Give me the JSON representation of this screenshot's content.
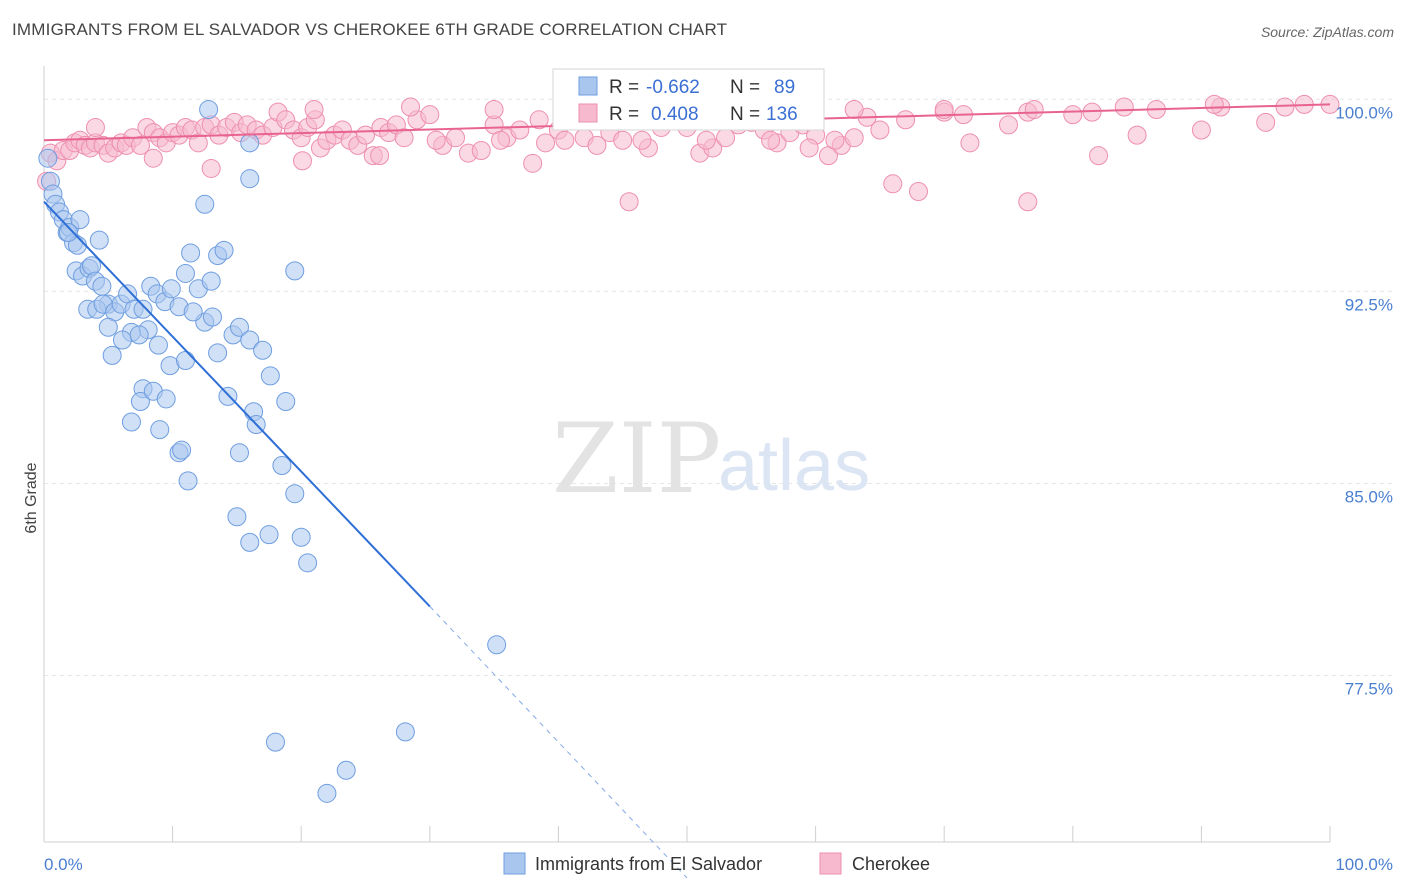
{
  "title": "IMMIGRANTS FROM EL SALVADOR VS CHEROKEE 6TH GRADE CORRELATION CHART",
  "source": "Source: ZipAtlas.com",
  "watermark": {
    "zip": "ZIP",
    "atlas": "atlas"
  },
  "colors": {
    "blue_fill": "#a9c6ee",
    "blue_stroke": "#6f9ee0",
    "blue_line": "#2f6fd6",
    "pink_fill": "#f6b9cd",
    "pink_stroke": "#ee8fb0",
    "pink_line": "#e8648f",
    "tick_text": "#4a7fd0"
  },
  "legend_box": {
    "rows": [
      {
        "r_label": "R =",
        "r_value": "-0.662",
        "n_label": "N =",
        "n_value": "89"
      },
      {
        "r_label": "R =",
        "r_value": "0.408",
        "n_label": "N =",
        "n_value": "136"
      }
    ]
  },
  "chart_data": {
    "type": "scatter",
    "xlabel": "",
    "ylabel": "6th Grade",
    "xlim": [
      0,
      100
    ],
    "ylim": [
      71.0,
      101.3
    ],
    "x_tick_labels": [
      "0.0%",
      "100.0%"
    ],
    "y_ticks": [
      100.0,
      92.5,
      85.0,
      77.5
    ],
    "y_tick_labels": [
      "100.0%",
      "92.5%",
      "85.0%",
      "77.5%"
    ],
    "grid": true,
    "legend_position": "bottom",
    "series": [
      {
        "name": "Immigrants from El Salvador",
        "color": "#a9c6ee",
        "trend": {
          "x": [
            0,
            30
          ],
          "y": [
            96.0,
            80.2
          ],
          "dashed_to": [
            50,
            69.6
          ]
        },
        "points": [
          [
            0.3,
            97.7
          ],
          [
            0.5,
            96.8
          ],
          [
            0.7,
            96.3
          ],
          [
            0.9,
            95.9
          ],
          [
            1.2,
            95.6
          ],
          [
            1.5,
            95.3
          ],
          [
            1.8,
            94.8
          ],
          [
            2.0,
            95.0
          ],
          [
            2.3,
            94.4
          ],
          [
            2.6,
            94.3
          ],
          [
            2.8,
            95.3
          ],
          [
            4.3,
            94.5
          ],
          [
            1.9,
            94.8
          ],
          [
            2.5,
            93.3
          ],
          [
            3.0,
            93.1
          ],
          [
            3.5,
            93.4
          ],
          [
            3.7,
            93.5
          ],
          [
            4.0,
            92.9
          ],
          [
            4.5,
            92.7
          ],
          [
            5.0,
            92.0
          ],
          [
            3.4,
            91.8
          ],
          [
            4.1,
            91.8
          ],
          [
            4.6,
            92.0
          ],
          [
            5.5,
            91.7
          ],
          [
            6.0,
            92.0
          ],
          [
            6.5,
            92.4
          ],
          [
            7.0,
            91.8
          ],
          [
            7.7,
            91.8
          ],
          [
            8.3,
            92.7
          ],
          [
            8.8,
            92.4
          ],
          [
            9.4,
            92.1
          ],
          [
            9.9,
            92.6
          ],
          [
            10.5,
            91.9
          ],
          [
            11.0,
            93.2
          ],
          [
            11.4,
            94.0
          ],
          [
            12.0,
            92.6
          ],
          [
            12.5,
            91.3
          ],
          [
            13.0,
            92.9
          ],
          [
            13.5,
            93.9
          ],
          [
            14.0,
            94.1
          ],
          [
            14.7,
            90.8
          ],
          [
            15.2,
            91.1
          ],
          [
            16.0,
            90.6
          ],
          [
            17.0,
            90.2
          ],
          [
            17.6,
            89.2
          ],
          [
            18.8,
            88.2
          ],
          [
            19.5,
            93.3
          ],
          [
            11.6,
            91.7
          ],
          [
            13.1,
            91.5
          ],
          [
            8.1,
            91.0
          ],
          [
            6.8,
            90.9
          ],
          [
            5.0,
            91.1
          ],
          [
            5.3,
            90.0
          ],
          [
            6.1,
            90.6
          ],
          [
            7.4,
            90.8
          ],
          [
            8.9,
            90.4
          ],
          [
            9.8,
            89.6
          ],
          [
            11.0,
            89.8
          ],
          [
            13.5,
            90.1
          ],
          [
            14.3,
            88.4
          ],
          [
            16.3,
            87.8
          ],
          [
            16.5,
            87.3
          ],
          [
            7.7,
            88.7
          ],
          [
            7.5,
            88.2
          ],
          [
            8.5,
            88.6
          ],
          [
            9.5,
            88.3
          ],
          [
            6.8,
            87.4
          ],
          [
            9.0,
            87.1
          ],
          [
            10.5,
            86.2
          ],
          [
            10.7,
            86.3
          ],
          [
            11.2,
            85.1
          ],
          [
            15.2,
            86.2
          ],
          [
            18.5,
            85.7
          ],
          [
            19.5,
            84.6
          ],
          [
            15.0,
            83.7
          ],
          [
            16.0,
            82.7
          ],
          [
            17.5,
            83.0
          ],
          [
            20.0,
            82.9
          ],
          [
            20.5,
            81.9
          ],
          [
            12.5,
            95.9
          ],
          [
            16.0,
            96.9
          ],
          [
            16.0,
            98.3
          ],
          [
            12.8,
            99.6
          ],
          [
            28.1,
            75.3
          ],
          [
            18.0,
            74.9
          ],
          [
            23.5,
            73.8
          ],
          [
            22.0,
            72.9
          ],
          [
            35.2,
            78.7
          ]
        ]
      },
      {
        "name": "Cherokee",
        "color": "#f6b9cd",
        "trend": {
          "x": [
            0,
            100
          ],
          "y": [
            98.4,
            99.8
          ]
        },
        "points": [
          [
            0.2,
            96.8
          ],
          [
            0.5,
            97.9
          ],
          [
            1.0,
            97.6
          ],
          [
            1.5,
            98.0
          ],
          [
            2.0,
            98.0
          ],
          [
            2.4,
            98.3
          ],
          [
            2.8,
            98.4
          ],
          [
            3.2,
            98.2
          ],
          [
            3.6,
            98.1
          ],
          [
            4.0,
            98.3
          ],
          [
            4.6,
            98.2
          ],
          [
            5.0,
            97.9
          ],
          [
            5.5,
            98.1
          ],
          [
            6.0,
            98.3
          ],
          [
            6.4,
            98.2
          ],
          [
            6.9,
            98.5
          ],
          [
            7.5,
            98.2
          ],
          [
            8.0,
            98.9
          ],
          [
            8.5,
            98.7
          ],
          [
            9.0,
            98.5
          ],
          [
            9.5,
            98.3
          ],
          [
            10.0,
            98.7
          ],
          [
            10.5,
            98.6
          ],
          [
            11.0,
            98.9
          ],
          [
            11.5,
            98.8
          ],
          [
            12.0,
            98.3
          ],
          [
            12.5,
            98.9
          ],
          [
            13.0,
            99.0
          ],
          [
            13.6,
            98.6
          ],
          [
            14.2,
            98.9
          ],
          [
            14.8,
            99.1
          ],
          [
            15.3,
            98.7
          ],
          [
            15.8,
            99.0
          ],
          [
            16.5,
            98.8
          ],
          [
            17.0,
            98.6
          ],
          [
            17.8,
            98.9
          ],
          [
            18.2,
            99.5
          ],
          [
            18.8,
            99.2
          ],
          [
            19.4,
            98.8
          ],
          [
            20.0,
            98.5
          ],
          [
            20.5,
            98.9
          ],
          [
            21.1,
            99.2
          ],
          [
            21.5,
            98.1
          ],
          [
            22.0,
            98.4
          ],
          [
            22.6,
            98.6
          ],
          [
            23.2,
            98.8
          ],
          [
            23.8,
            98.4
          ],
          [
            24.4,
            98.2
          ],
          [
            25.0,
            98.6
          ],
          [
            25.6,
            97.8
          ],
          [
            26.2,
            98.9
          ],
          [
            26.8,
            98.7
          ],
          [
            27.4,
            99.0
          ],
          [
            28.0,
            98.5
          ],
          [
            29.0,
            99.2
          ],
          [
            30.0,
            99.4
          ],
          [
            31.0,
            98.2
          ],
          [
            32.0,
            98.5
          ],
          [
            33.0,
            97.9
          ],
          [
            34.0,
            98.0
          ],
          [
            35.0,
            99.0
          ],
          [
            36.0,
            98.5
          ],
          [
            37.0,
            98.8
          ],
          [
            38.0,
            97.5
          ],
          [
            39.0,
            98.3
          ],
          [
            40.0,
            98.8
          ],
          [
            41.0,
            99.2
          ],
          [
            42.0,
            98.5
          ],
          [
            43.0,
            98.2
          ],
          [
            44.0,
            98.7
          ],
          [
            45.0,
            98.4
          ],
          [
            46.0,
            99.4
          ],
          [
            47.0,
            98.1
          ],
          [
            48.0,
            98.9
          ],
          [
            49.0,
            99.3
          ],
          [
            50.0,
            98.9
          ],
          [
            51.0,
            97.9
          ],
          [
            52.0,
            98.1
          ],
          [
            53.0,
            98.5
          ],
          [
            54.0,
            99.0
          ],
          [
            55.0,
            99.1
          ],
          [
            56.0,
            98.8
          ],
          [
            57.0,
            98.3
          ],
          [
            58.0,
            98.7
          ],
          [
            59.0,
            99.0
          ],
          [
            60.0,
            98.6
          ],
          [
            61.0,
            97.8
          ],
          [
            62.0,
            98.2
          ],
          [
            63.0,
            98.5
          ],
          [
            64.0,
            99.3
          ],
          [
            65.0,
            98.8
          ],
          [
            66.0,
            96.7
          ],
          [
            68.0,
            96.4
          ],
          [
            70.0,
            99.5
          ],
          [
            72.0,
            98.3
          ],
          [
            75.0,
            99.0
          ],
          [
            80.0,
            99.4
          ],
          [
            85.0,
            98.6
          ],
          [
            90.0,
            98.8
          ],
          [
            95.0,
            99.1
          ],
          [
            100.0,
            99.8
          ],
          [
            13.0,
            97.3
          ],
          [
            20.1,
            97.6
          ],
          [
            26.1,
            97.8
          ],
          [
            30.5,
            98.4
          ],
          [
            35.5,
            98.4
          ],
          [
            40.5,
            98.4
          ],
          [
            46.5,
            98.4
          ],
          [
            51.5,
            98.4
          ],
          [
            56.5,
            98.4
          ],
          [
            61.5,
            98.4
          ],
          [
            67.0,
            99.2
          ],
          [
            71.5,
            99.4
          ],
          [
            76.5,
            99.5
          ],
          [
            81.5,
            99.5
          ],
          [
            86.5,
            99.6
          ],
          [
            91.5,
            99.7
          ],
          [
            96.5,
            99.7
          ],
          [
            4.0,
            98.9
          ],
          [
            8.5,
            97.7
          ],
          [
            21.0,
            99.6
          ],
          [
            28.5,
            99.7
          ],
          [
            35.0,
            99.6
          ],
          [
            42.0,
            99.5
          ],
          [
            49.0,
            99.4
          ],
          [
            56.0,
            99.5
          ],
          [
            63.0,
            99.6
          ],
          [
            70.0,
            99.6
          ],
          [
            77.0,
            99.6
          ],
          [
            84.0,
            99.7
          ],
          [
            91.0,
            99.8
          ],
          [
            98.0,
            99.8
          ],
          [
            45.5,
            96.0
          ],
          [
            76.5,
            96.0
          ],
          [
            38.5,
            99.2
          ],
          [
            59.5,
            98.1
          ],
          [
            82.0,
            97.8
          ]
        ]
      }
    ]
  }
}
